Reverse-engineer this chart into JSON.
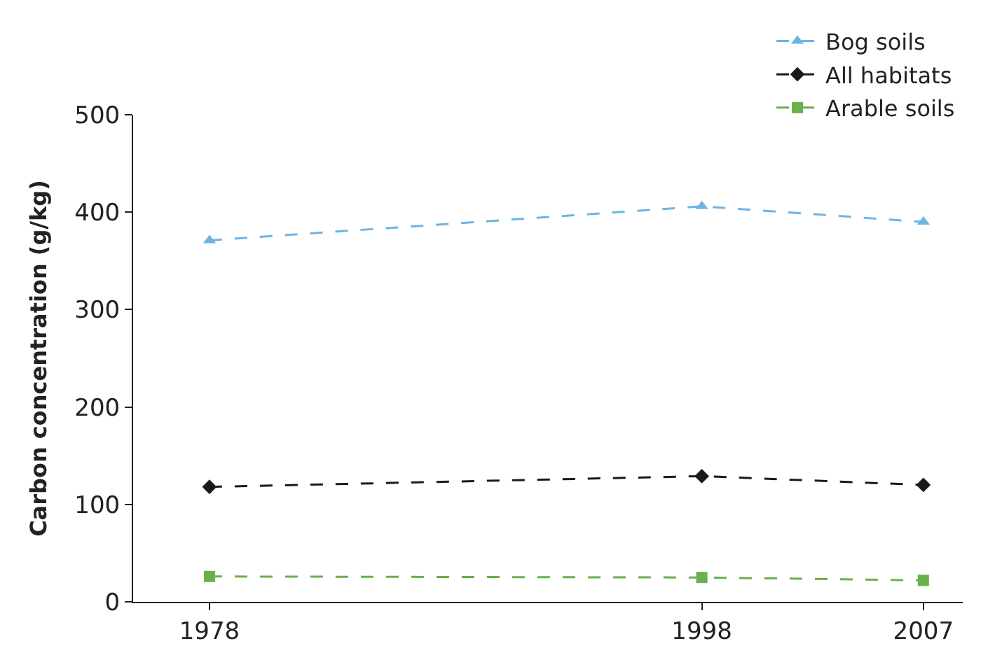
{
  "chart_data": {
    "type": "line",
    "ylabel": "Carbon concentration (g/kg)",
    "x": [
      1978,
      1998,
      2007
    ],
    "xlim": [
      1974.9,
      2008.6
    ],
    "xticks": [
      1978,
      1998,
      2007
    ],
    "ylim": [
      0,
      500
    ],
    "yticks": [
      0,
      100,
      200,
      300,
      400,
      500
    ],
    "legend": "top right",
    "line_style": "dashed",
    "series": [
      {
        "name": "Bog soils",
        "color": "#6cb4e4",
        "marker": "triangle",
        "values": [
          371,
          406,
          390
        ]
      },
      {
        "name": "All habitats",
        "color": "#1a1a1a",
        "marker": "diamond",
        "values": [
          118,
          129,
          120
        ]
      },
      {
        "name": "Arable soils",
        "color": "#6ab04c",
        "marker": "square",
        "values": [
          26,
          25,
          22
        ]
      }
    ]
  }
}
